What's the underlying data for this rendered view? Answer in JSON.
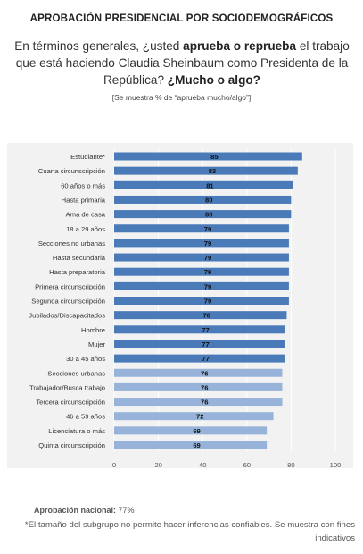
{
  "header": {
    "title": "APROBACIÓN PRESIDENCIAL POR SOCIODEMOGRÁFICOS",
    "question_part1": "En términos generales, ¿usted ",
    "question_bold1": "aprueba o reprueba",
    "question_part2": " el trabajo que está haciendo Claudia Sheinbaum como Presidenta de la República? ",
    "question_bold2": "¿Mucho o algo?",
    "note": "[Se muestra % de “aprueba mucho/algo”]"
  },
  "chart_data": {
    "type": "bar",
    "orientation": "horizontal",
    "categories": [
      "Estudiante*",
      "Cuarta circunscripción",
      "60 años o más",
      "Hasta primaria",
      "Ama de casa",
      "18 a 29 años",
      "Secciones no urbanas",
      "Hasta secundaria",
      "Hasta preparatoria",
      "Primera circunscripción",
      "Segunda circunscripción",
      "Jubilados/Discapacitados",
      "Hombre",
      "Mujer",
      "30 a 45 años",
      "Secciones urbanas",
      "Trabajador/Busca trabajo",
      "Tercera circunscripción",
      "46 a 59 años",
      "Licenciatura o más",
      "Quinta circunscripción"
    ],
    "values": [
      85,
      83,
      81,
      80,
      80,
      79,
      79,
      79,
      79,
      79,
      79,
      78,
      77,
      77,
      77,
      76,
      76,
      76,
      72,
      69,
      69
    ],
    "value_labels": [
      "85",
      "83",
      "81",
      "80",
      "80",
      "79",
      "79",
      "79",
      "79",
      "79",
      "79",
      "78",
      "77",
      "77",
      "77",
      "76",
      "76",
      "76",
      "72",
      "69",
      "69"
    ],
    "threshold": 77,
    "colors": {
      "above_or_equal": "#4a7ab8",
      "below": "#97b3d9",
      "panel": "#f2f2f2",
      "grid": "#ffffff"
    },
    "xlim": [
      0,
      100
    ],
    "xticks": [
      "0",
      "20",
      "40",
      "60",
      "80",
      "100"
    ],
    "grid": true
  },
  "footer": {
    "approval_label": "Aprobación nacional:",
    "approval_value": "77%",
    "footnote": "*El tamaño del subgrupo no permite hacer inferencias confiables. Se muestra con fines indicativos"
  }
}
